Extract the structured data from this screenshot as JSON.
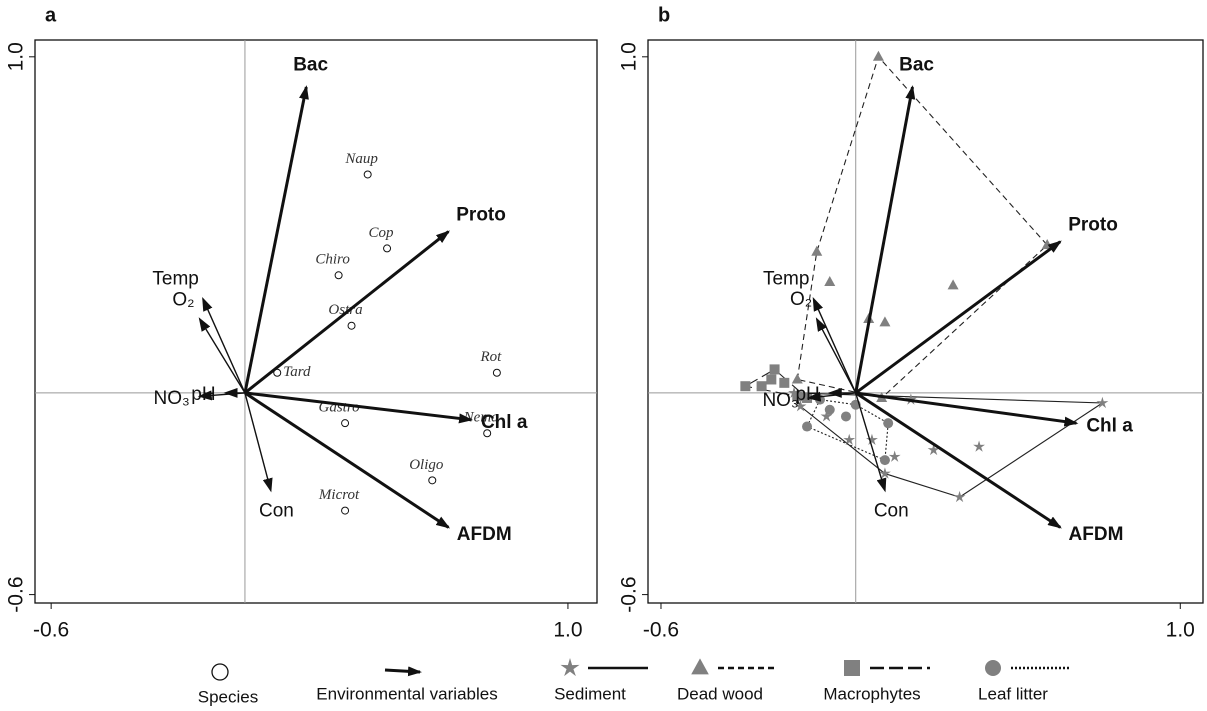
{
  "chart_data": [
    {
      "type": "biplot",
      "panel": "a",
      "xlim": [
        -0.65,
        1.09
      ],
      "ylim": [
        -0.625,
        1.05
      ],
      "xticks": [
        -0.6,
        {
          "value": 1,
          "label": "1.0"
        }
      ],
      "yticks": [
        -0.6,
        {
          "value": 1,
          "label": "1.0"
        }
      ],
      "vectors": [
        {
          "label": "Bac",
          "bold": true,
          "x": 0.19,
          "y": 0.91
        },
        {
          "label": "Proto",
          "bold": true,
          "x": 0.63,
          "y": 0.48
        },
        {
          "label": "Chl a",
          "bold": true,
          "x": 0.7,
          "y": -0.08
        },
        {
          "label": "AFDM",
          "bold": true,
          "x": 0.63,
          "y": -0.4
        },
        {
          "label": "Con",
          "bold": false,
          "x": 0.08,
          "y": -0.29
        },
        {
          "label": "NO₃",
          "bold": false,
          "x": -0.14,
          "y": -0.01
        },
        {
          "label": "pH",
          "bold": false,
          "x": -0.06,
          "y": 0.0
        },
        {
          "label": "O₂",
          "bold": false,
          "x": -0.14,
          "y": 0.22
        },
        {
          "label": "Temp",
          "bold": false,
          "x": -0.13,
          "y": 0.28
        }
      ],
      "species": [
        {
          "label": "Naup",
          "x": 0.38,
          "y": 0.65
        },
        {
          "label": "Cop",
          "x": 0.44,
          "y": 0.43
        },
        {
          "label": "Chiro",
          "x": 0.29,
          "y": 0.35
        },
        {
          "label": "Ostra",
          "x": 0.33,
          "y": 0.2
        },
        {
          "label": "Rot",
          "x": 0.78,
          "y": 0.06
        },
        {
          "label": "Tard",
          "x": 0.1,
          "y": 0.06
        },
        {
          "label": "Gastro",
          "x": 0.31,
          "y": -0.09
        },
        {
          "label": "Nema",
          "x": 0.75,
          "y": -0.12
        },
        {
          "label": "Oligo",
          "x": 0.58,
          "y": -0.26
        },
        {
          "label": "Microt",
          "x": 0.31,
          "y": -0.35
        }
      ]
    },
    {
      "type": "biplot",
      "panel": "b",
      "xlim": [
        -0.64,
        1.07
      ],
      "ylim": [
        -0.625,
        1.05
      ],
      "xticks": [
        -0.6,
        {
          "value": 1,
          "label": "1.0"
        }
      ],
      "yticks": [
        -0.6,
        {
          "value": 1,
          "label": "1.0"
        }
      ],
      "vectors": [
        {
          "label": "Bac",
          "bold": true,
          "x": 0.175,
          "y": 0.91
        },
        {
          "label": "Proto",
          "bold": true,
          "x": 0.63,
          "y": 0.45
        },
        {
          "label": "Chl a",
          "bold": true,
          "x": 0.68,
          "y": -0.09
        },
        {
          "label": "AFDM",
          "bold": true,
          "x": 0.63,
          "y": -0.4
        },
        {
          "label": "Con",
          "bold": false,
          "x": 0.09,
          "y": -0.29
        },
        {
          "label": "NO₃",
          "bold": false,
          "x": -0.145,
          "y": -0.015
        },
        {
          "label": "pH",
          "bold": false,
          "x": -0.08,
          "y": 0.0
        },
        {
          "label": "O₂",
          "bold": false,
          "x": -0.12,
          "y": 0.22
        },
        {
          "label": "Temp",
          "bold": false,
          "x": -0.13,
          "y": 0.28
        }
      ],
      "groups": [
        {
          "name": "Sediment",
          "marker": "star",
          "line": "solid",
          "x": [
            0.76,
            0.32,
            0.38,
            0.24,
            0.17,
            0.09,
            0.12,
            -0.02,
            -0.09,
            -0.19,
            0.05,
            -0.17
          ],
          "y": [
            -0.03,
            -0.31,
            -0.16,
            -0.17,
            -0.02,
            -0.24,
            -0.19,
            -0.14,
            -0.07,
            0.0,
            -0.14,
            -0.04
          ]
        },
        {
          "name": "Dead wood",
          "marker": "triangle",
          "line": "dashed",
          "x": [
            0.07,
            0.59,
            -0.12,
            -0.08,
            0.3,
            0.04,
            0.09,
            -0.18,
            0.08
          ],
          "y": [
            1.0,
            0.44,
            0.42,
            0.33,
            0.32,
            0.22,
            0.21,
            0.04,
            -0.015
          ]
        },
        {
          "name": "Macrophytes",
          "marker": "square",
          "line": "longdash",
          "x": [
            -0.34,
            -0.25,
            -0.29,
            -0.22,
            -0.26,
            -0.18,
            -0.15
          ],
          "y": [
            0.02,
            0.07,
            0.02,
            0.03,
            0.04,
            -0.01,
            -0.015
          ]
        },
        {
          "name": "Leaf litter",
          "marker": "circle",
          "line": "dotted",
          "x": [
            -0.03,
            0.1,
            0.09,
            0.0,
            -0.15,
            -0.08,
            -0.11
          ],
          "y": [
            -0.07,
            -0.09,
            -0.2,
            -0.035,
            -0.1,
            -0.05,
            -0.02
          ]
        }
      ]
    }
  ],
  "legend": {
    "species": "Species",
    "vectors": "Environmental variables"
  }
}
